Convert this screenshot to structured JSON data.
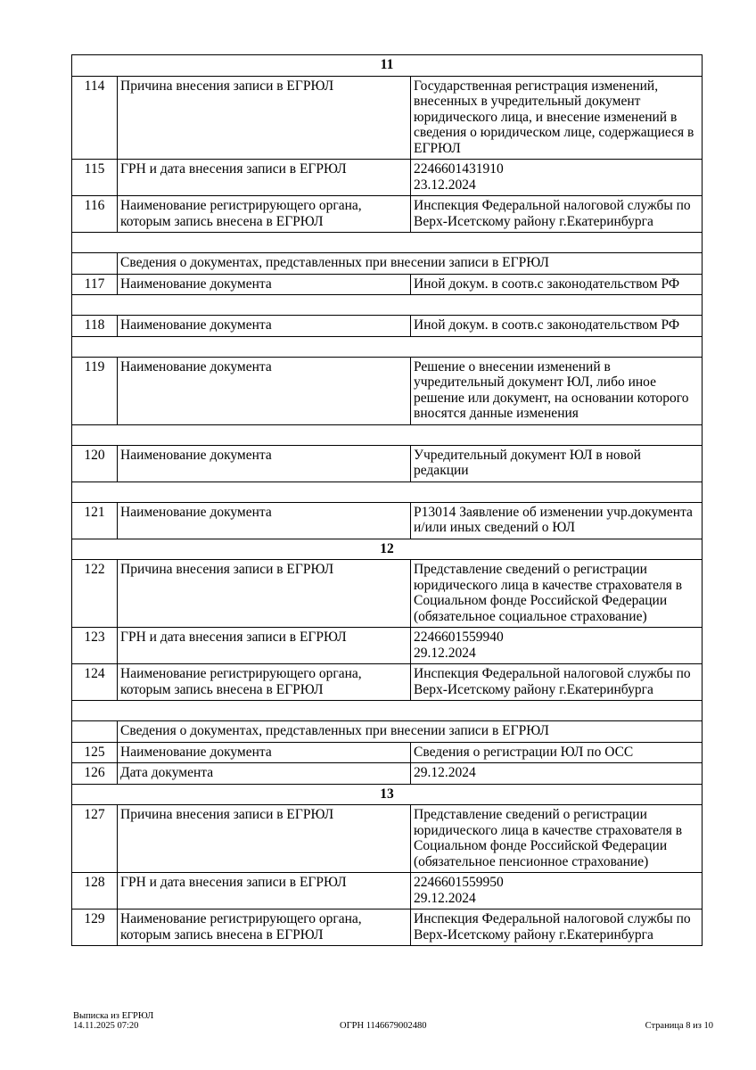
{
  "rows": [
    {
      "type": "section",
      "text": "11"
    },
    {
      "type": "row",
      "num": "114",
      "label": "Причина внесения записи в ЕГРЮЛ",
      "value": "Государственная регистрация изменений, внесенных в учредительный документ юридического лица, и внесение изменений в сведения о юридическом лице, содержащиеся в ЕГРЮЛ"
    },
    {
      "type": "row",
      "num": "115",
      "label": "ГРН и дата внесения записи в ЕГРЮЛ",
      "value": "2246601431910\n23.12.2024"
    },
    {
      "type": "row",
      "num": "116",
      "label": "Наименование регистрирующего органа, которым запись внесена в ЕГРЮЛ",
      "value": "Инспекция Федеральной налоговой службы по Верх-Исетскому району г.Екатеринбурга"
    },
    {
      "type": "empty"
    },
    {
      "type": "info",
      "text": "Сведения о документах, представленных при внесении записи в ЕГРЮЛ"
    },
    {
      "type": "row",
      "num": "117",
      "label": "Наименование документа",
      "value": "Иной докум. в соотв.с законодательством РФ"
    },
    {
      "type": "empty"
    },
    {
      "type": "row",
      "num": "118",
      "label": "Наименование документа",
      "value": "Иной докум. в соотв.с законодательством РФ"
    },
    {
      "type": "empty"
    },
    {
      "type": "row",
      "num": "119",
      "label": "Наименование документа",
      "value": "Решение о внесении изменений в учредительный документ ЮЛ, либо иное решение или документ, на основании которого вносятся данные изменения"
    },
    {
      "type": "empty"
    },
    {
      "type": "row",
      "num": "120",
      "label": "Наименование документа",
      "value": "Учредительный документ ЮЛ в новой редакции"
    },
    {
      "type": "empty"
    },
    {
      "type": "row",
      "num": "121",
      "label": "Наименование документа",
      "value": "Р13014 Заявление об изменении учр.документа и/или иных сведений о ЮЛ"
    },
    {
      "type": "section",
      "text": "12"
    },
    {
      "type": "row",
      "num": "122",
      "label": "Причина внесения записи в ЕГРЮЛ",
      "value": "Представление сведений о регистрации юридического лица в качестве страхователя в Социальном фонде Российской Федерации (обязательное социальное страхование)"
    },
    {
      "type": "row",
      "num": "123",
      "label": "ГРН и дата внесения записи в ЕГРЮЛ",
      "value": "2246601559940\n29.12.2024"
    },
    {
      "type": "row",
      "num": "124",
      "label": "Наименование регистрирующего органа, которым запись внесена в ЕГРЮЛ",
      "value": "Инспекция Федеральной налоговой службы по Верх-Исетскому району г.Екатеринбурга"
    },
    {
      "type": "empty"
    },
    {
      "type": "info",
      "text": "Сведения о документах, представленных при внесении записи в ЕГРЮЛ"
    },
    {
      "type": "row",
      "num": "125",
      "label": "Наименование документа",
      "value": "Сведения о регистрации ЮЛ по ОСС"
    },
    {
      "type": "row",
      "num": "126",
      "label": "Дата документа",
      "value": "29.12.2024"
    },
    {
      "type": "section",
      "text": "13"
    },
    {
      "type": "row",
      "num": "127",
      "label": "Причина внесения записи в ЕГРЮЛ",
      "value": "Представление сведений о регистрации юридического лица в качестве страхователя в Социальном фонде Российской Федерации (обязательное пенсионное страхование)"
    },
    {
      "type": "row",
      "num": "128",
      "label": "ГРН и дата внесения записи в ЕГРЮЛ",
      "value": "2246601559950\n29.12.2024"
    },
    {
      "type": "row",
      "num": "129",
      "label": "Наименование регистрирующего органа, которым запись внесена в ЕГРЮЛ",
      "value": "Инспекция Федеральной налоговой службы по Верх-Исетскому району г.Екатеринбурга"
    }
  ],
  "footer": {
    "doc_title": "Выписка из ЕГРЮЛ",
    "datetime": "14.11.2025 07:20",
    "ogrn": "ОГРН 1146679002480",
    "page": "Страница 8 из 10"
  }
}
